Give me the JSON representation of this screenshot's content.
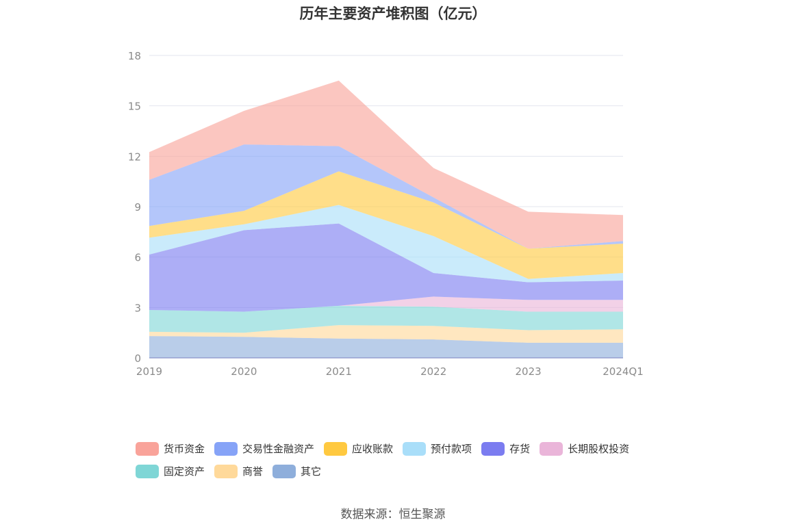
{
  "chart_data": {
    "type": "area",
    "stacked": true,
    "title": "历年主要资产堆积图（亿元）",
    "x": [
      "2019",
      "2020",
      "2021",
      "2022",
      "2023",
      "2024Q1"
    ],
    "ylim": [
      0,
      18
    ],
    "yticks": [
      "0",
      "3",
      "6",
      "9",
      "12",
      "15",
      "18"
    ],
    "grid": true,
    "legend_position": "bottom",
    "series": [
      {
        "name": "其它",
        "color": "#8eaedb",
        "values": [
          1.3,
          1.25,
          1.15,
          1.1,
          0.9,
          0.9
        ]
      },
      {
        "name": "商誉",
        "color": "#ffd99a",
        "values": [
          0.25,
          0.25,
          0.8,
          0.8,
          0.75,
          0.8
        ]
      },
      {
        "name": "固定资产",
        "color": "#7fd6d6",
        "values": [
          1.3,
          1.25,
          1.15,
          1.15,
          1.1,
          1.05
        ]
      },
      {
        "name": "长期股权投资",
        "color": "#eab5d9",
        "values": [
          0.0,
          0.0,
          0.0,
          0.6,
          0.7,
          0.7
        ]
      },
      {
        "name": "存货",
        "color": "#7b7cf0",
        "values": [
          3.3,
          4.85,
          4.9,
          1.4,
          1.05,
          1.15
        ]
      },
      {
        "name": "预付款项",
        "color": "#a9def9",
        "values": [
          1.0,
          0.35,
          1.1,
          2.2,
          0.2,
          0.45
        ]
      },
      {
        "name": "应收账款",
        "color": "#ffc940",
        "values": [
          0.7,
          0.8,
          2.0,
          2.0,
          1.8,
          1.75
        ]
      },
      {
        "name": "交易性金融资产",
        "color": "#86a3f7",
        "values": [
          2.75,
          3.95,
          1.5,
          0.3,
          0.0,
          0.15
        ]
      },
      {
        "name": "货币资金",
        "color": "#f9a39a",
        "values": [
          1.65,
          2.0,
          3.9,
          1.75,
          2.2,
          1.55
        ]
      }
    ],
    "legend_order": [
      "货币资金",
      "交易性金融资产",
      "应收账款",
      "预付款项",
      "存货",
      "长期股权投资",
      "固定资产",
      "商誉",
      "其它"
    ]
  },
  "source_text": "数据来源：恒生聚源"
}
